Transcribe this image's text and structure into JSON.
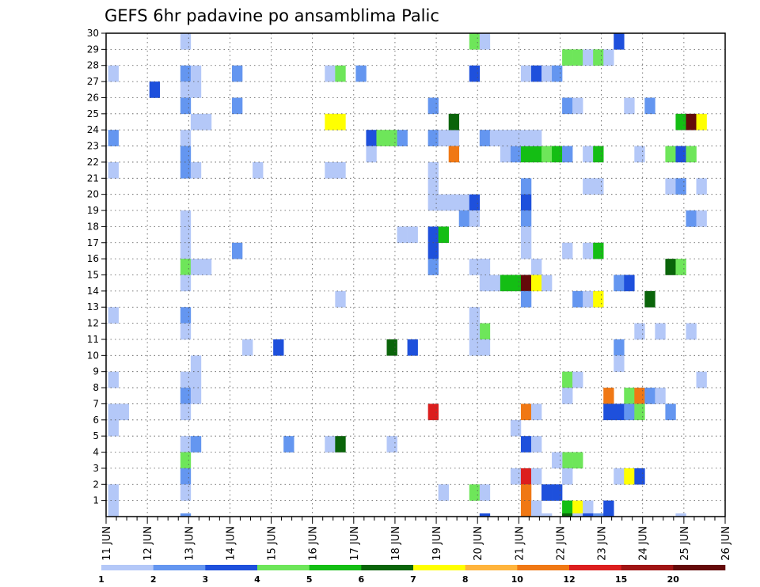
{
  "chart_data": {
    "type": "heatmap",
    "title": "GEFS 6hr padavine po ansamblima Palic",
    "xlabel": "",
    "ylabel": "",
    "x_ticks": [
      "11 JUN",
      "12 JUN",
      "13 JUN",
      "14 JUN",
      "15 JUN",
      "16 JUN",
      "17 JUN",
      "18 JUN",
      "19 JUN",
      "20 JUN",
      "21 JUN",
      "22 JUN",
      "23 JUN",
      "24 JUN",
      "25 JUN",
      "26 JUN"
    ],
    "y_ticks": [
      1,
      2,
      3,
      4,
      5,
      6,
      7,
      8,
      9,
      10,
      11,
      12,
      13,
      14,
      15,
      16,
      17,
      18,
      19,
      20,
      21,
      22,
      23,
      24,
      25,
      26,
      27,
      28,
      29,
      30
    ],
    "xlim": [
      0,
      60
    ],
    "ylim": [
      0,
      30
    ],
    "x_unit": "6-hour step from 11 JUN 00Z",
    "y_unit": "ensemble member",
    "grid": true,
    "colorbar": {
      "labels": [
        "1",
        "2",
        "3",
        "4",
        "5",
        "6",
        "7",
        "8",
        "10",
        "12",
        "15",
        "20"
      ],
      "colors": [
        "#b4c8f8",
        "#6496f0",
        "#1e50dc",
        "#6ee65a",
        "#14be14",
        "#0a640a",
        "#ffff00",
        "#ffb43c",
        "#f07814",
        "#dc1e1e",
        "#a01414",
        "#640a0a"
      ]
    },
    "cells": [
      [
        0.2,
        27.5,
        1
      ],
      [
        0.2,
        23.5,
        2
      ],
      [
        0.2,
        21.5,
        1
      ],
      [
        0.2,
        12.5,
        1
      ],
      [
        0.2,
        8.5,
        1
      ],
      [
        0.2,
        6.5,
        1
      ],
      [
        1.2,
        6.5,
        1
      ],
      [
        0.2,
        5.5,
        1
      ],
      [
        0.2,
        1.5,
        1
      ],
      [
        0.2,
        0.5,
        1
      ],
      [
        4.2,
        26.5,
        3
      ],
      [
        7.2,
        29.5,
        1
      ],
      [
        7.2,
        27.5,
        2
      ],
      [
        8.2,
        27.5,
        1
      ],
      [
        7.2,
        26.5,
        1
      ],
      [
        8.2,
        26.5,
        1
      ],
      [
        7.2,
        25.5,
        2
      ],
      [
        8.2,
        24.5,
        1
      ],
      [
        9.2,
        24.5,
        1
      ],
      [
        7.2,
        23.5,
        1
      ],
      [
        7.2,
        22.5,
        2
      ],
      [
        7.2,
        21.5,
        2
      ],
      [
        8.2,
        21.5,
        1
      ],
      [
        7.2,
        18.5,
        1
      ],
      [
        7.2,
        17.5,
        1
      ],
      [
        7.2,
        16.5,
        1
      ],
      [
        7.2,
        15.5,
        4
      ],
      [
        8.2,
        15.5,
        1
      ],
      [
        9.2,
        15.5,
        1
      ],
      [
        7.2,
        14.5,
        1
      ],
      [
        7.2,
        12.5,
        2
      ],
      [
        7.2,
        11.5,
        1
      ],
      [
        8.2,
        9.5,
        1
      ],
      [
        7.2,
        8.5,
        1
      ],
      [
        8.2,
        8.5,
        1
      ],
      [
        7.2,
        7.5,
        2
      ],
      [
        8.2,
        7.5,
        1
      ],
      [
        7.2,
        6.5,
        1
      ],
      [
        7.2,
        4.5,
        1
      ],
      [
        8.2,
        4.5,
        2
      ],
      [
        7.2,
        3.5,
        4
      ],
      [
        7.2,
        2.5,
        2
      ],
      [
        7.2,
        1.5,
        1
      ],
      [
        7.2,
        -0.3,
        2
      ],
      [
        12.2,
        27.5,
        2
      ],
      [
        12.2,
        25.5,
        2
      ],
      [
        12.2,
        16.5,
        2
      ],
      [
        14.2,
        21.5,
        1
      ],
      [
        13.2,
        10.5,
        1
      ],
      [
        16.2,
        10.5,
        3
      ],
      [
        17.2,
        4.5,
        2
      ],
      [
        21.2,
        27.5,
        1
      ],
      [
        22.2,
        27.5,
        4
      ],
      [
        21.2,
        24.5,
        7
      ],
      [
        22.2,
        24.5,
        7
      ],
      [
        21.2,
        21.5,
        1
      ],
      [
        22.2,
        21.5,
        1
      ],
      [
        22.2,
        13.5,
        1
      ],
      [
        21.2,
        4.5,
        1
      ],
      [
        22.2,
        4.5,
        6
      ],
      [
        24.2,
        27.5,
        2
      ],
      [
        25.2,
        23.5,
        3
      ],
      [
        25.2,
        22.5,
        1
      ],
      [
        26.2,
        23.5,
        4
      ],
      [
        27.2,
        23.5,
        4
      ],
      [
        28.2,
        23.5,
        2
      ],
      [
        28.2,
        17.5,
        1
      ],
      [
        29.2,
        17.5,
        1
      ],
      [
        27.2,
        10.5,
        6
      ],
      [
        29.2,
        10.5,
        3
      ],
      [
        27.2,
        4.5,
        1
      ],
      [
        31.2,
        25.5,
        2
      ],
      [
        31.2,
        23.5,
        2
      ],
      [
        32.2,
        23.5,
        1
      ],
      [
        33.2,
        23.5,
        1
      ],
      [
        33.2,
        24.5,
        6
      ],
      [
        33.2,
        22.5,
        9
      ],
      [
        31.2,
        21.5,
        1
      ],
      [
        31.2,
        20.5,
        1
      ],
      [
        31.2,
        19.5,
        1
      ],
      [
        32.2,
        19.5,
        1
      ],
      [
        33.2,
        19.5,
        1
      ],
      [
        34.2,
        19.5,
        1
      ],
      [
        35.2,
        19.5,
        3
      ],
      [
        31.2,
        17.5,
        3
      ],
      [
        32.2,
        17.5,
        5
      ],
      [
        31.2,
        16.5,
        3
      ],
      [
        31.2,
        15.5,
        2
      ],
      [
        31.2,
        6.5,
        10
      ],
      [
        32.2,
        1.5,
        1
      ],
      [
        35.2,
        29.5,
        4
      ],
      [
        36.2,
        29.5,
        1
      ],
      [
        35.2,
        27.5,
        3
      ],
      [
        36.2,
        23.5,
        2
      ],
      [
        37.2,
        23.5,
        1
      ],
      [
        38.2,
        22.5,
        1
      ],
      [
        39.2,
        22.5,
        2
      ],
      [
        40.2,
        22.5,
        5
      ],
      [
        41.2,
        22.5,
        5
      ],
      [
        42.2,
        22.5,
        4
      ],
      [
        43.2,
        22.5,
        5
      ],
      [
        44.2,
        22.5,
        2
      ],
      [
        38.2,
        23.5,
        1
      ],
      [
        39.2,
        23.5,
        1
      ],
      [
        40.2,
        23.5,
        1
      ],
      [
        41.2,
        23.5,
        1
      ],
      [
        40.2,
        20.5,
        2
      ],
      [
        40.2,
        19.5,
        3
      ],
      [
        40.2,
        18.5,
        2
      ],
      [
        34.2,
        18.5,
        2
      ],
      [
        35.2,
        18.5,
        1
      ],
      [
        40.2,
        17.5,
        1
      ],
      [
        40.2,
        16.5,
        1
      ],
      [
        35.2,
        15.5,
        1
      ],
      [
        36.2,
        15.5,
        1
      ],
      [
        41.2,
        15.5,
        1
      ],
      [
        36.2,
        14.5,
        1
      ],
      [
        37.2,
        14.5,
        1
      ],
      [
        38.2,
        14.5,
        5
      ],
      [
        39.2,
        14.5,
        5
      ],
      [
        40.2,
        14.5,
        12
      ],
      [
        41.2,
        14.5,
        7
      ],
      [
        42.2,
        14.5,
        1
      ],
      [
        40.2,
        13.5,
        2
      ],
      [
        35.2,
        12.5,
        1
      ],
      [
        36.2,
        11.5,
        4
      ],
      [
        35.2,
        11.5,
        1
      ],
      [
        35.2,
        10.5,
        1
      ],
      [
        36.2,
        10.5,
        1
      ],
      [
        40.2,
        6.5,
        9
      ],
      [
        41.2,
        6.5,
        1
      ],
      [
        39.2,
        5.5,
        1
      ],
      [
        40.2,
        4.5,
        3
      ],
      [
        41.2,
        4.5,
        1
      ],
      [
        35.2,
        1.5,
        4
      ],
      [
        36.2,
        1.5,
        1
      ],
      [
        39.2,
        2.5,
        1
      ],
      [
        40.2,
        2.5,
        10
      ],
      [
        41.2,
        2.5,
        1
      ],
      [
        40.2,
        1.5,
        9
      ],
      [
        40.2,
        0.5,
        9
      ],
      [
        42.2,
        1.5,
        3
      ],
      [
        41.2,
        0.5,
        1
      ],
      [
        41.2,
        -0.3,
        1
      ],
      [
        42.2,
        -0.3,
        1
      ],
      [
        36.2,
        -0.3,
        3
      ],
      [
        40.2,
        27.5,
        1
      ],
      [
        41.2,
        27.5,
        3
      ],
      [
        42.2,
        27.5,
        1
      ],
      [
        43.2,
        27.5,
        2
      ],
      [
        44.2,
        28.5,
        4
      ],
      [
        45.2,
        28.5,
        4
      ],
      [
        46.2,
        28.5,
        1
      ],
      [
        47.2,
        28.5,
        4
      ],
      [
        48.2,
        28.5,
        1
      ],
      [
        44.2,
        25.5,
        2
      ],
      [
        45.2,
        25.5,
        1
      ],
      [
        46.2,
        22.5,
        1
      ],
      [
        47.2,
        22.5,
        5
      ],
      [
        46.2,
        20.5,
        1
      ],
      [
        47.2,
        20.5,
        1
      ],
      [
        44.2,
        16.5,
        1
      ],
      [
        46.2,
        16.5,
        1
      ],
      [
        47.2,
        16.5,
        5
      ],
      [
        45.2,
        13.5,
        2
      ],
      [
        46.2,
        13.5,
        1
      ],
      [
        47.2,
        13.5,
        7
      ],
      [
        44.2,
        8.5,
        4
      ],
      [
        45.2,
        8.5,
        1
      ],
      [
        44.2,
        7.5,
        1
      ],
      [
        44.2,
        3.5,
        4
      ],
      [
        45.2,
        3.5,
        4
      ],
      [
        43.2,
        3.5,
        1
      ],
      [
        44.2,
        2.5,
        1
      ],
      [
        43.2,
        1.5,
        3
      ],
      [
        44.2,
        0.5,
        5
      ],
      [
        45.2,
        0.5,
        7
      ],
      [
        46.2,
        0.5,
        1
      ],
      [
        44.2,
        -0.3,
        6
      ],
      [
        45.2,
        -0.3,
        1
      ],
      [
        46.2,
        -0.3,
        3
      ],
      [
        47.2,
        -0.3,
        2
      ],
      [
        49.2,
        29.5,
        3
      ],
      [
        50.2,
        25.5,
        1
      ],
      [
        52.2,
        25.5,
        2
      ],
      [
        49.2,
        14.5,
        2
      ],
      [
        50.2,
        14.5,
        3
      ],
      [
        52.2,
        13.5,
        6
      ],
      [
        49.2,
        10.5,
        2
      ],
      [
        49.2,
        9.5,
        1
      ],
      [
        48.2,
        7.5,
        9
      ],
      [
        50.2,
        7.5,
        4
      ],
      [
        51.2,
        7.5,
        9
      ],
      [
        52.2,
        7.5,
        2
      ],
      [
        53.2,
        7.5,
        1
      ],
      [
        48.2,
        6.5,
        3
      ],
      [
        49.2,
        6.5,
        3
      ],
      [
        50.2,
        6.5,
        2
      ],
      [
        51.2,
        6.5,
        4
      ],
      [
        54.2,
        6.5,
        2
      ],
      [
        49.2,
        2.5,
        1
      ],
      [
        50.2,
        2.5,
        7
      ],
      [
        51.2,
        2.5,
        3
      ],
      [
        48.2,
        0.5,
        3
      ],
      [
        51.2,
        11.5,
        1
      ],
      [
        53.2,
        11.5,
        1
      ],
      [
        51.2,
        22.5,
        1
      ],
      [
        55.2,
        24.5,
        5
      ],
      [
        56.2,
        24.5,
        12
      ],
      [
        57.2,
        24.5,
        7
      ],
      [
        54.2,
        22.5,
        4
      ],
      [
        55.2,
        22.5,
        3
      ],
      [
        56.2,
        22.5,
        4
      ],
      [
        54.2,
        20.5,
        1
      ],
      [
        55.2,
        20.5,
        2
      ],
      [
        57.2,
        20.5,
        1
      ],
      [
        56.2,
        18.5,
        2
      ],
      [
        57.2,
        18.5,
        1
      ],
      [
        54.2,
        15.5,
        6
      ],
      [
        55.2,
        15.5,
        4
      ],
      [
        56.2,
        11.5,
        1
      ],
      [
        57.2,
        8.5,
        1
      ],
      [
        55.2,
        -0.3,
        1
      ]
    ]
  }
}
